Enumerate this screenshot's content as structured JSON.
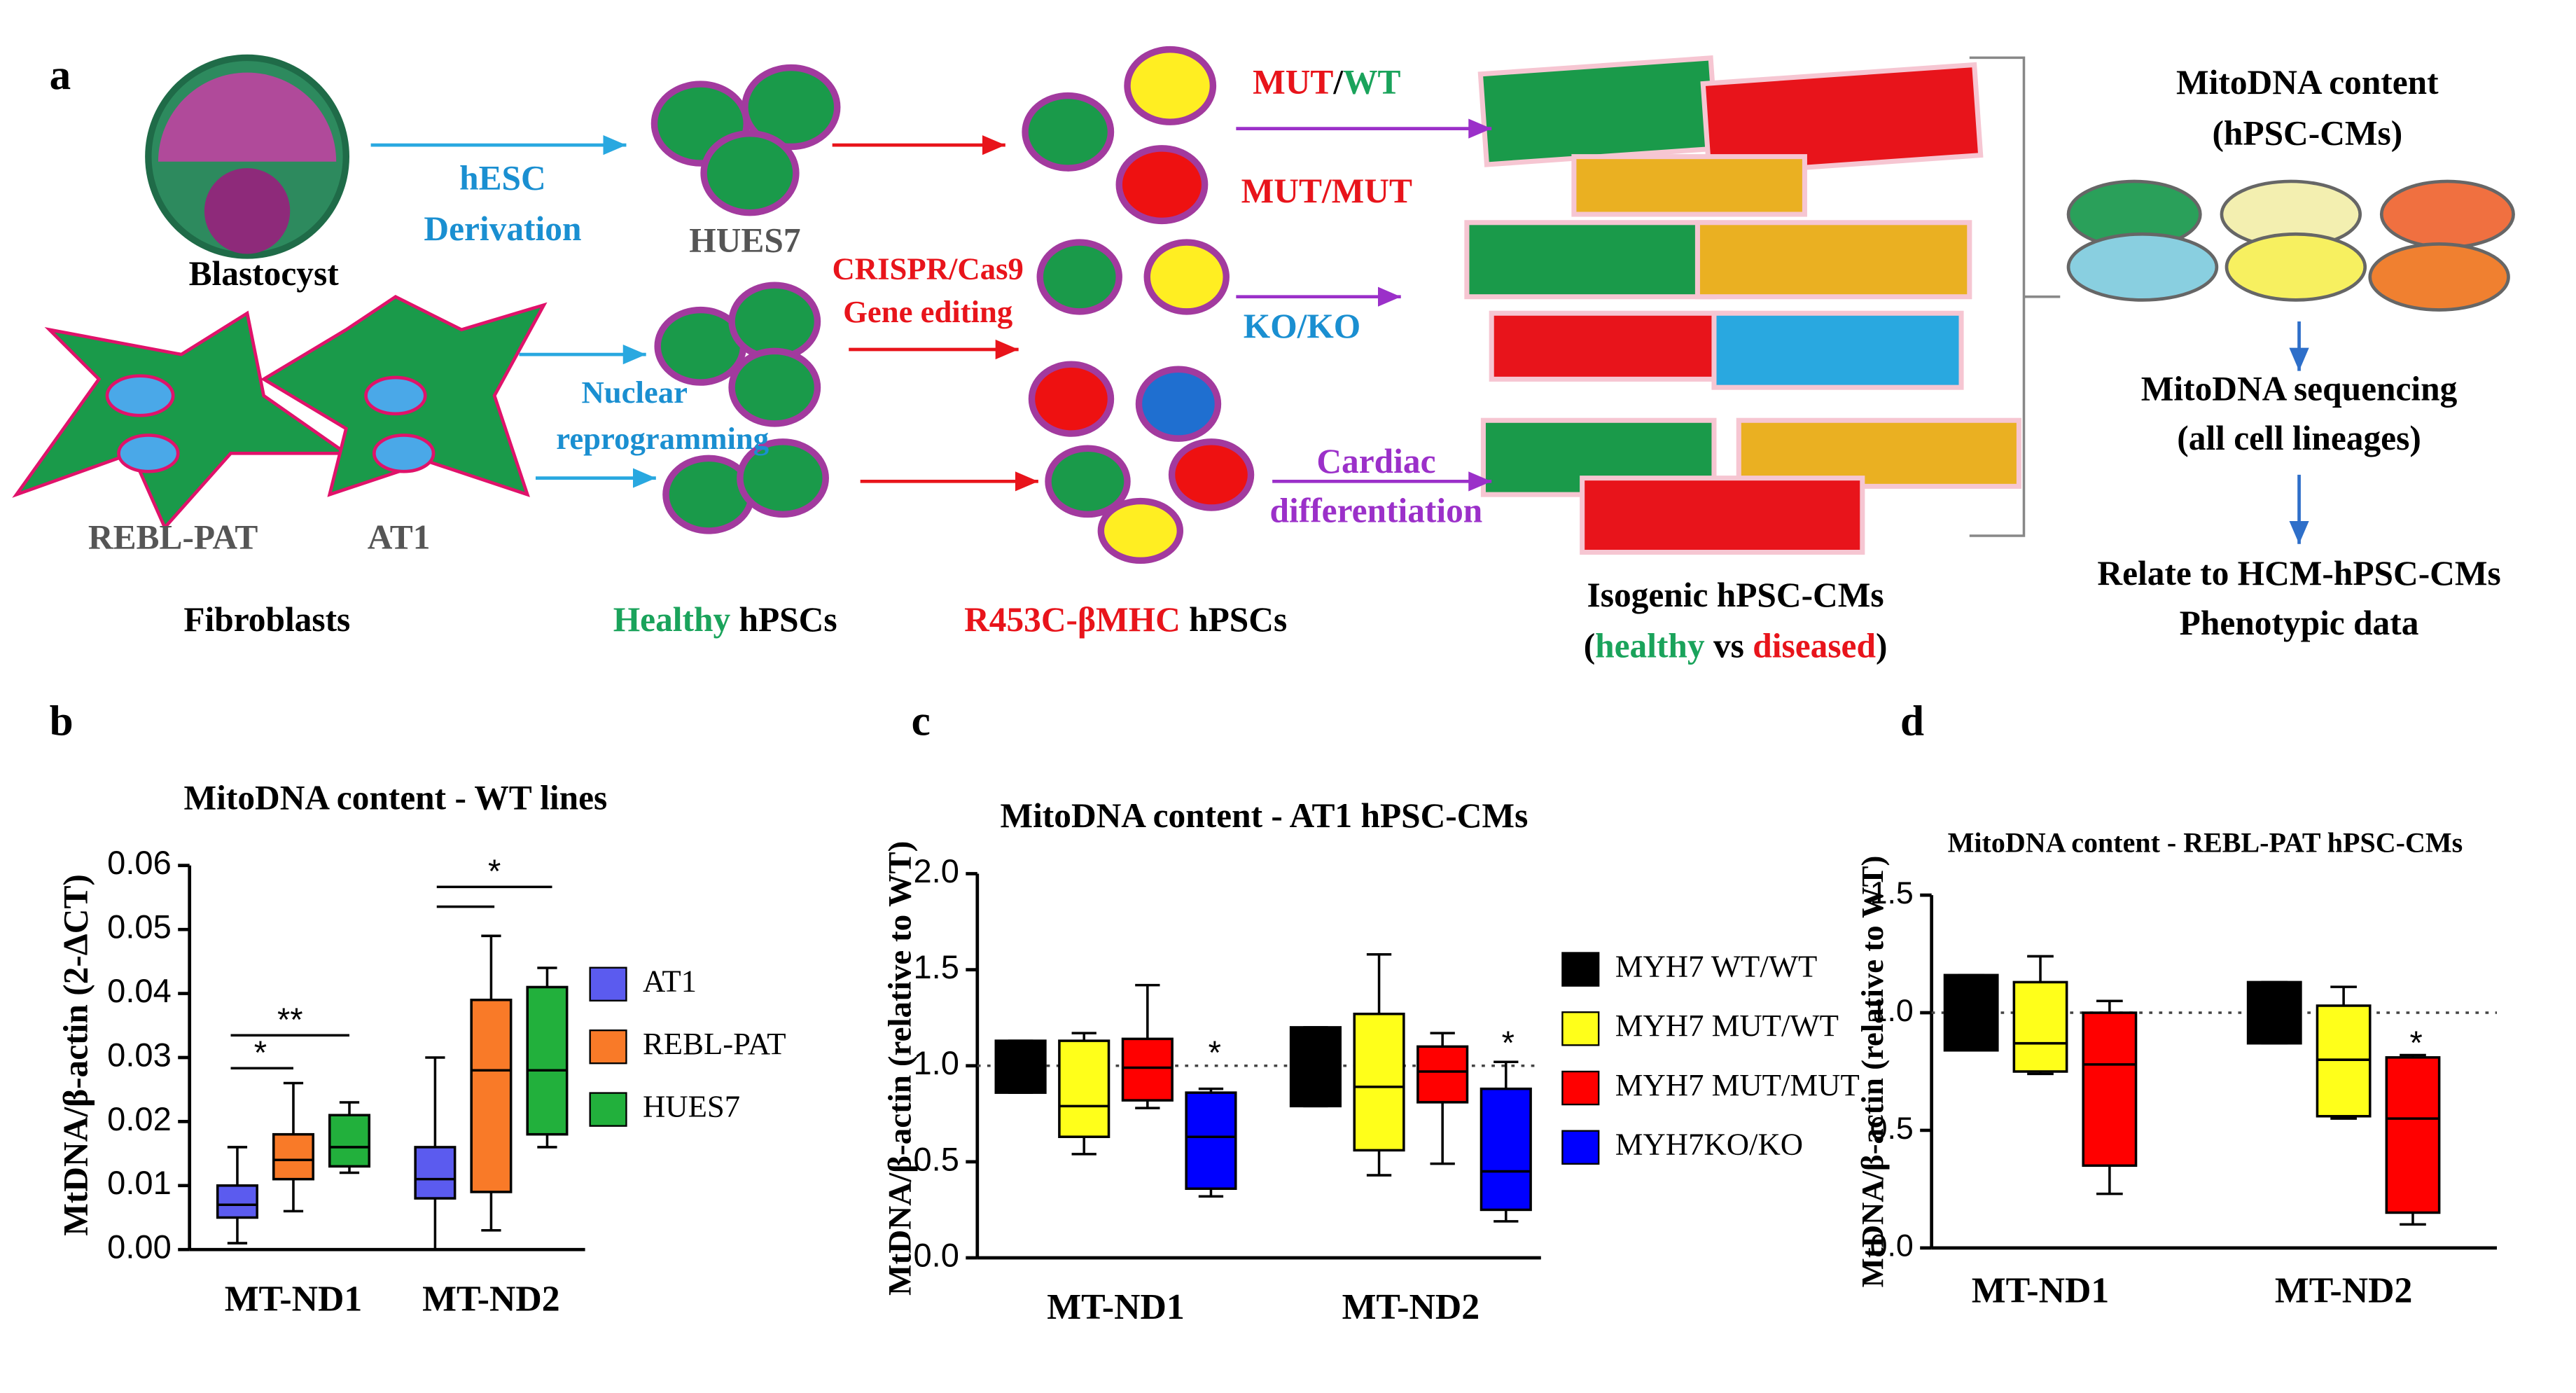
{
  "panel_a": {
    "label": "a",
    "blastocyst": "Blastocyst",
    "hesc": "hESC",
    "derivation": "Derivation",
    "hues7": "HUES7",
    "crispr": "CRISPR/Cas9",
    "gene_editing": "Gene editing",
    "mut_wt": [
      "MUT",
      "/",
      "WT"
    ],
    "mut_mut": "MUT/MUT",
    "ko_ko": "KO/KO",
    "nuclear": "Nuclear",
    "reprogramming": "reprogramming",
    "rebl_pat": "REBL-PAT",
    "at1": "AT1",
    "fibroblasts": "Fibroblasts",
    "healthy_hpscs": [
      "Healthy",
      " hPSCs"
    ],
    "r453c_hpscs": [
      "R453C-βMHC",
      " hPSCs"
    ],
    "cardiac": "Cardiac",
    "differentiation": "differentiation",
    "isogenic": "Isogenic hPSC-CMs",
    "healthy_vs_diseased": [
      "(",
      "healthy",
      " vs ",
      "diseased",
      ")"
    ],
    "mito_content": "MitoDNA content",
    "mito_content_sub": "(hPSC-CMs)",
    "mito_seq": "MitoDNA sequencing",
    "mito_seq_sub": "(all cell lineages)",
    "relate": "Relate to HCM-hPSC-CMs",
    "phenotypic": "Phenotypic data"
  },
  "chart_data": [
    {
      "type": "box",
      "panel_label": "b",
      "title": "MitoDNA content - WT lines",
      "ylabel": "MtDNA/β-actin (2-ΔCT)",
      "categories": [
        "MT-ND1",
        "MT-ND2"
      ],
      "ylim": [
        0,
        0.06
      ],
      "yticks": [
        {
          "value": 0,
          "label": "0.00"
        },
        0.01,
        0.02,
        0.03,
        0.04,
        0.05,
        0.06
      ],
      "legend": "right",
      "annotations": [
        "*",
        "**",
        "*"
      ],
      "series": [
        {
          "name": "AT1",
          "color": "#5b5bef",
          "stats": [
            {
              "min": 0.001,
              "q1": 0.005,
              "median": 0.007,
              "q3": 0.01,
              "max": 0.016
            },
            {
              "min": 0.0,
              "q1": 0.008,
              "median": 0.011,
              "q3": 0.016,
              "max": 0.03
            }
          ]
        },
        {
          "name": "REBL-PAT",
          "color": "#f97a28",
          "stats": [
            {
              "min": 0.006,
              "q1": 0.011,
              "median": 0.014,
              "q3": 0.018,
              "max": 0.026
            },
            {
              "min": 0.003,
              "q1": 0.009,
              "median": 0.028,
              "q3": 0.039,
              "max": 0.049
            }
          ]
        },
        {
          "name": "HUES7",
          "color": "#22b03c",
          "stats": [
            {
              "min": 0.012,
              "q1": 0.013,
              "median": 0.016,
              "q3": 0.021,
              "max": 0.023
            },
            {
              "min": 0.016,
              "q1": 0.018,
              "median": 0.028,
              "q3": 0.041,
              "max": 0.044
            }
          ]
        }
      ]
    },
    {
      "type": "box",
      "panel_label": "c",
      "title": "MitoDNA content - AT1 hPSC-CMs",
      "ylabel": "MtDNA/β-actin (relative to WT)",
      "categories": [
        "MT-ND1",
        "MT-ND2"
      ],
      "ylim": [
        0,
        2
      ],
      "yticks": [
        {
          "value": 0,
          "label": "0.0"
        },
        0.5,
        {
          "value": 1,
          "label": "1.0"
        },
        1.5,
        {
          "value": 2,
          "label": "2.0"
        }
      ],
      "legend": "right",
      "reference_line": 1,
      "annotations": [
        "*",
        "*"
      ],
      "series": [
        {
          "name": "MYH7 WT/WT",
          "color": "#000000",
          "stats": [
            {
              "min": 0.86,
              "q1": 0.86,
              "median": 1.0,
              "q3": 1.13,
              "max": 1.13
            },
            {
              "min": 0.79,
              "q1": 0.79,
              "median": 1.0,
              "q3": 1.2,
              "max": 1.2
            }
          ]
        },
        {
          "name": "MYH7 MUT/WT",
          "color": "#ffff1a",
          "stats": [
            {
              "min": 0.54,
              "q1": 0.63,
              "median": 0.79,
              "q3": 1.13,
              "max": 1.17
            },
            {
              "min": 0.43,
              "q1": 0.56,
              "median": 0.89,
              "q3": 1.27,
              "max": 1.58
            }
          ]
        },
        {
          "name": "MYH7 MUT/MUT",
          "color": "#ff0000",
          "stats": [
            {
              "min": 0.78,
              "q1": 0.82,
              "median": 0.99,
              "q3": 1.14,
              "max": 1.42
            },
            {
              "min": 0.49,
              "q1": 0.81,
              "median": 0.97,
              "q3": 1.1,
              "max": 1.17
            }
          ]
        },
        {
          "name": "MYH7KO/KO",
          "color": "#0000ff",
          "stats": [
            {
              "min": 0.32,
              "q1": 0.36,
              "median": 0.63,
              "q3": 0.86,
              "max": 0.88
            },
            {
              "min": 0.19,
              "q1": 0.25,
              "median": 0.45,
              "q3": 0.88,
              "max": 1.02
            }
          ]
        }
      ]
    },
    {
      "type": "box",
      "panel_label": "d",
      "title": "MitoDNA content - REBL-PAT hPSC-CMs",
      "ylabel": "MtDNA/β-actin (relative to WT)",
      "categories": [
        "MT-ND1",
        "MT-ND2"
      ],
      "ylim": [
        0,
        1.5
      ],
      "yticks": [
        {
          "value": 0,
          "label": "0.0"
        },
        0.5,
        {
          "value": 1,
          "label": "1.0"
        },
        1.5
      ],
      "reference_line": 1,
      "annotations": [
        "*"
      ],
      "series": [
        {
          "color": "#000000",
          "stats": [
            {
              "min": 0.84,
              "q1": 0.84,
              "median": 1.0,
              "q3": 1.16,
              "max": 1.16
            },
            {
              "min": 0.87,
              "q1": 0.87,
              "median": 1.0,
              "q3": 1.13,
              "max": 1.13
            }
          ]
        },
        {
          "color": "#ffff1a",
          "stats": [
            {
              "min": 0.74,
              "q1": 0.75,
              "median": 0.87,
              "q3": 1.13,
              "max": 1.24
            },
            {
              "min": 0.55,
              "q1": 0.56,
              "median": 0.8,
              "q3": 1.03,
              "max": 1.11
            }
          ]
        },
        {
          "color": "#ff0000",
          "stats": [
            {
              "min": 0.23,
              "q1": 0.35,
              "median": 0.78,
              "q3": 1.0,
              "max": 1.05
            },
            {
              "min": 0.1,
              "q1": 0.15,
              "median": 0.55,
              "q3": 0.81,
              "max": 0.82
            }
          ]
        }
      ]
    }
  ]
}
